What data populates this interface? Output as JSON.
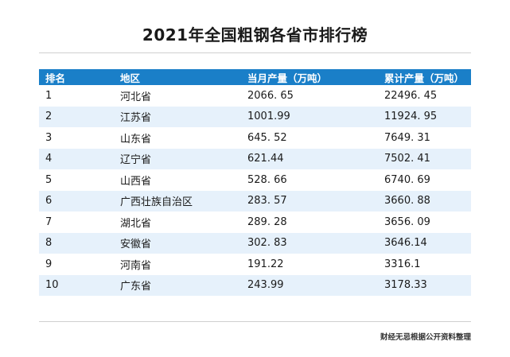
{
  "title": "2021年全国粗钢各省市排行榜",
  "table": {
    "headers": [
      "排名",
      "地区",
      "当月产量（万吨）",
      "累计产量（万吨）"
    ],
    "rows": [
      {
        "rank": "1",
        "region": "河北省",
        "monthly": "2066. 65",
        "cumulative": "22496. 45"
      },
      {
        "rank": "2",
        "region": "江苏省",
        "monthly": "1001.99",
        "cumulative": "11924. 95"
      },
      {
        "rank": "3",
        "region": "山东省",
        "monthly": "645. 52",
        "cumulative": "7649. 31"
      },
      {
        "rank": "4",
        "region": "辽宁省",
        "monthly": "621.44",
        "cumulative": "7502. 41"
      },
      {
        "rank": "5",
        "region": "山西省",
        "monthly": "528. 66",
        "cumulative": "6740. 69"
      },
      {
        "rank": "6",
        "region": "广西壮族自治区",
        "monthly": "283. 57",
        "cumulative": "3660. 88"
      },
      {
        "rank": "7",
        "region": "湖北省",
        "monthly": "289. 28",
        "cumulative": "3656. 09"
      },
      {
        "rank": "8",
        "region": "安徽省",
        "monthly": "302. 83",
        "cumulative": "3646.14"
      },
      {
        "rank": "9",
        "region": "河南省",
        "monthly": "191.22",
        "cumulative": "3316.1"
      },
      {
        "rank": "10",
        "region": "广东省",
        "monthly": "243.99",
        "cumulative": "3178.33"
      }
    ]
  },
  "source": "财经无忌根据公开资料整理",
  "colors": {
    "header_bg": "#1a7fc8",
    "header_text": "#ffffff",
    "stripe_bg": "#e6f1fb"
  }
}
